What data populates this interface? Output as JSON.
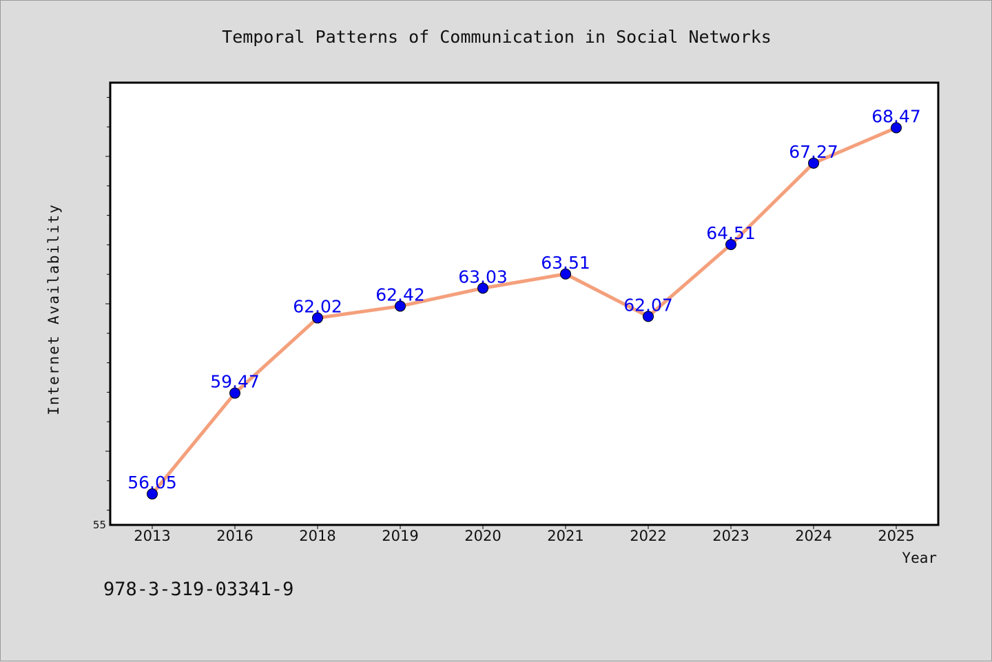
{
  "chart_data": {
    "type": "line",
    "title": "Temporal Patterns of Communication in Social Networks",
    "xlabel": "Year",
    "ylabel": "Internet Availability",
    "categories": [
      "2013",
      "2016",
      "2018",
      "2019",
      "2020",
      "2021",
      "2022",
      "2023",
      "2024",
      "2025"
    ],
    "series": [
      {
        "values": [
          56.05,
          59.47,
          62.02,
          62.42,
          63.03,
          63.51,
          62.07,
          64.51,
          67.27,
          68.47
        ],
        "value_labels": [
          "56.05",
          "59.47",
          "62.02",
          "62.42",
          "63.03",
          "63.51",
          "62.07",
          "64.51",
          "67.27",
          "68.47"
        ],
        "line_color": "#f4a07c",
        "marker_color": "#0000ee"
      }
    ],
    "ylim": [
      55,
      70
    ],
    "y_tick_labels": [
      "55"
    ],
    "grid": false,
    "legend": "none"
  },
  "footer": {
    "isbn": "978-3-319-03341-9"
  },
  "colors": {
    "background": "#dcdcdc",
    "plot_background": "#ffffff",
    "data_label": "#0000ee"
  }
}
